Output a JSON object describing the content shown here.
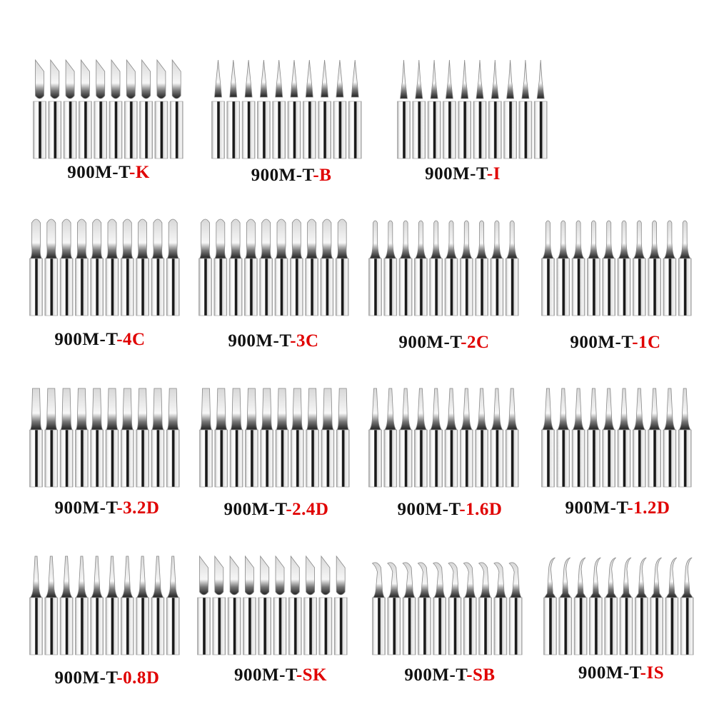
{
  "label_prefix": "900M-T-",
  "colors": {
    "prefix": "#111111",
    "suffix": "#e00000",
    "metal_light": "#f4f4f4",
    "metal_dark": "#1a1a1a"
  },
  "tip_count_per_group": 10,
  "groups": [
    {
      "suffix": "-K",
      "shape": "knife"
    },
    {
      "suffix": "-B",
      "shape": "conical"
    },
    {
      "suffix": "-I",
      "shape": "fine-conical"
    },
    {
      "suffix": "-4C",
      "shape": "bevel"
    },
    {
      "suffix": "-3C",
      "shape": "bevel"
    },
    {
      "suffix": "-2C",
      "shape": "bevel-small"
    },
    {
      "suffix": "-1C",
      "shape": "bevel-small"
    },
    {
      "suffix": "-3.2D",
      "shape": "chisel"
    },
    {
      "suffix": "-2.4D",
      "shape": "chisel"
    },
    {
      "suffix": "-1.6D",
      "shape": "chisel-small"
    },
    {
      "suffix": "-1.2D",
      "shape": "chisel-small"
    },
    {
      "suffix": "-0.8D",
      "shape": "chisel-fine"
    },
    {
      "suffix": "-SK",
      "shape": "knife"
    },
    {
      "suffix": "-SB",
      "shape": "bent"
    },
    {
      "suffix": "-IS",
      "shape": "bent-fine"
    }
  ]
}
